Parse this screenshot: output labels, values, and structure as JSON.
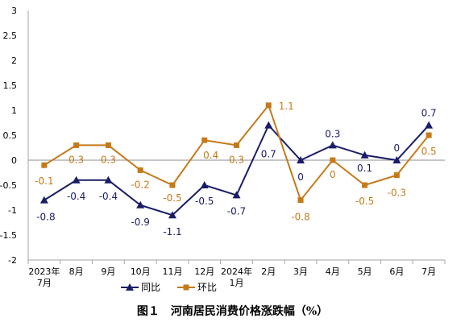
{
  "caption": "图１　河南居民消费价格涨跌幅（%）",
  "chart_data": {
    "type": "line",
    "title": "",
    "xlabel": "",
    "ylabel": "",
    "ylim": [
      -2,
      3
    ],
    "yticks": [
      "-2",
      "-1.5",
      "-1",
      "-0.5",
      "0",
      "0.5",
      "1",
      "1.5",
      "2",
      "2.5",
      "3"
    ],
    "zero_line": true,
    "grid": false,
    "legend_position": "bottom-left",
    "categories": [
      [
        "2023年",
        "7月"
      ],
      [
        "8月"
      ],
      [
        "9月"
      ],
      [
        "10月"
      ],
      [
        "11月"
      ],
      [
        "12月"
      ],
      [
        "2024年",
        "1月"
      ],
      [
        "2月"
      ],
      [
        "3月"
      ],
      [
        "4月"
      ],
      [
        "5月"
      ],
      [
        "6月"
      ],
      [
        "7月"
      ]
    ],
    "series": [
      {
        "name": "同比",
        "color": "#1a1d66",
        "marker": "triangle",
        "label_position": "below",
        "values": [
          -0.8,
          -0.4,
          -0.4,
          -0.9,
          -1.1,
          -0.5,
          -0.7,
          0.7,
          0,
          0.3,
          0.1,
          0,
          0.7
        ],
        "labels": [
          "-0.8",
          "-0.4",
          "-0.4",
          "-0.9",
          "-1.1",
          "-0.5",
          "-0.7",
          "0.7",
          "0",
          "0.3",
          "0.1",
          "0",
          "0.7"
        ]
      },
      {
        "name": "环比",
        "color": "#c47a19",
        "marker": "square",
        "label_position": "below",
        "values": [
          -0.1,
          0.3,
          0.3,
          -0.2,
          -0.5,
          0.4,
          0.3,
          1.1,
          -0.8,
          0,
          -0.5,
          -0.3,
          0.5
        ],
        "labels": [
          "-0.1",
          "0.3",
          "0.3",
          "-0.2",
          "-0.5",
          "0.4",
          "0.3",
          "1.1",
          "-0.8",
          "0",
          "-0.5",
          "-0.3",
          "0.5"
        ]
      }
    ]
  }
}
